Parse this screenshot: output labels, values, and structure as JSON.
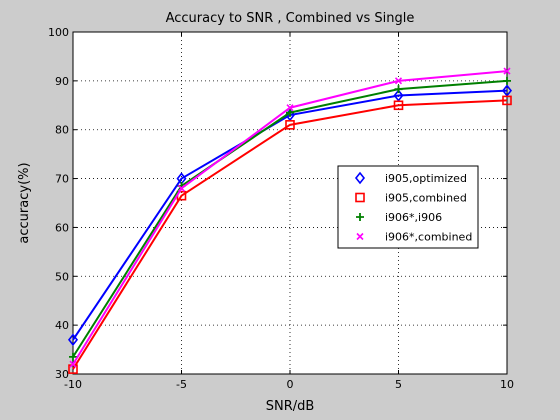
{
  "chart_data": {
    "type": "line",
    "title": "Accuracy to SNR , Combined vs Single",
    "xlabel": "SNR/dB",
    "ylabel": "accuracy(%)",
    "xlim": [
      -10,
      10
    ],
    "ylim": [
      30,
      100
    ],
    "xticks": [
      -10,
      -5,
      0,
      5,
      10
    ],
    "yticks": [
      30,
      40,
      50,
      60,
      70,
      80,
      90,
      100
    ],
    "grid": true,
    "legend_position": "right",
    "x": [
      -10,
      -5,
      0,
      5,
      10
    ],
    "series": [
      {
        "name": "i905,optimized",
        "values": [
          37,
          70,
          83,
          87,
          88
        ],
        "color": "#0000ff",
        "marker": "diamond"
      },
      {
        "name": "i905,combined",
        "values": [
          31,
          66.5,
          81,
          85,
          86
        ],
        "color": "#ff0000",
        "marker": "square"
      },
      {
        "name": "i906*,i906",
        "values": [
          33.5,
          68.5,
          83.5,
          88.3,
          90
        ],
        "color": "#008000",
        "marker": "plus"
      },
      {
        "name": "i906*,combined",
        "values": [
          32,
          68,
          84.5,
          90,
          92
        ],
        "color": "#ff00ff",
        "marker": "x"
      }
    ]
  }
}
